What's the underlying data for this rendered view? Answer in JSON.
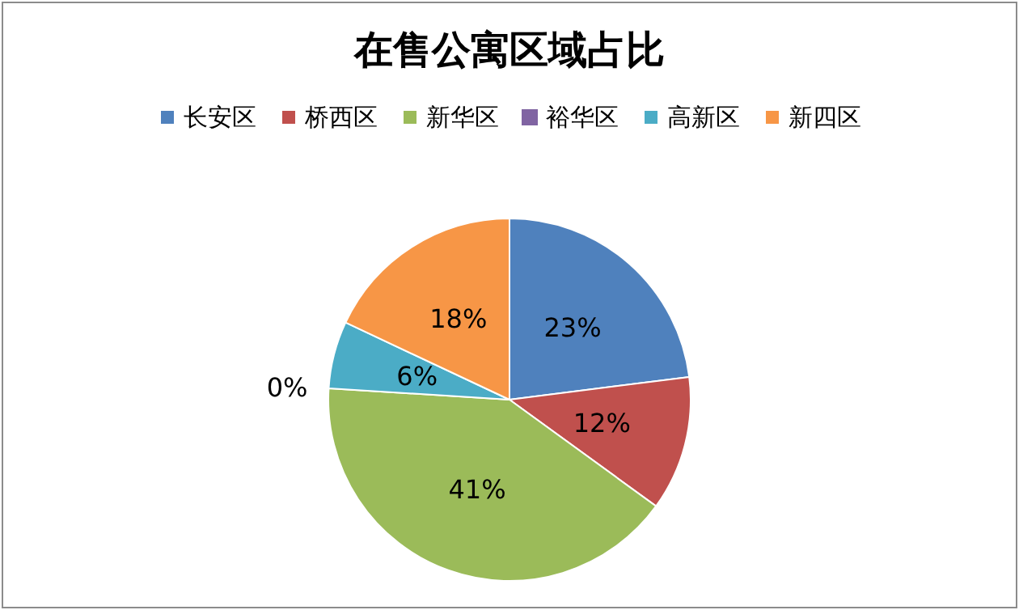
{
  "chart_data": {
    "type": "pie",
    "title": "在售公寓区域占比",
    "categories": [
      "长安区",
      "桥西区",
      "新华区",
      "裕华区",
      "高新区",
      "新四区"
    ],
    "values": [
      23,
      12,
      41,
      0,
      6,
      18
    ],
    "value_labels": [
      "23%",
      "12%",
      "41%",
      "0%",
      "6%",
      "18%"
    ],
    "colors": [
      "#4f81bd",
      "#c0504d",
      "#9bbb59",
      "#8064a2",
      "#4bacc6",
      "#f79646"
    ],
    "legend": "top"
  }
}
